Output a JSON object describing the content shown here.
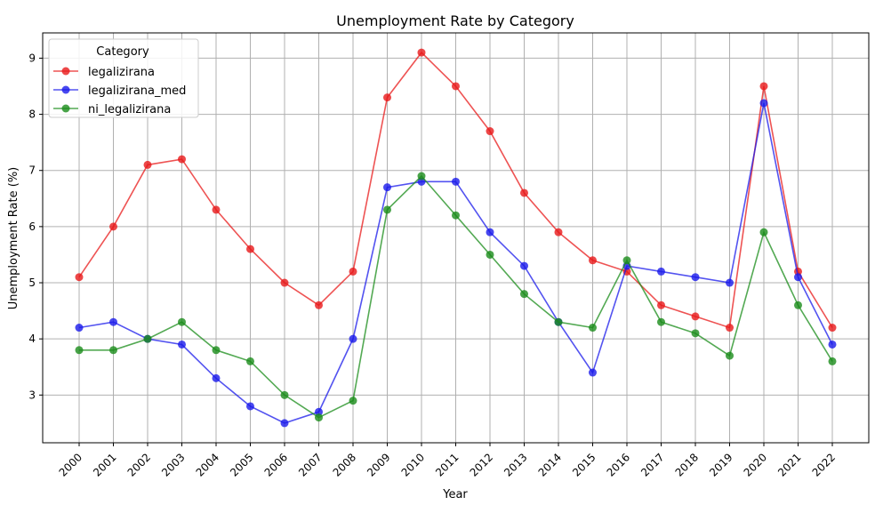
{
  "chart_data": {
    "type": "line",
    "title": "Unemployment Rate by Category",
    "xlabel": "Year",
    "ylabel": "Unemployment Rate (%)",
    "ylim": [
      2.15,
      9.45
    ],
    "yticks": [
      3,
      4,
      5,
      6,
      7,
      8,
      9
    ],
    "grid": true,
    "legend": {
      "title": "Category",
      "placement": "top-left"
    },
    "categories": [
      "2000",
      "2001",
      "2002",
      "2003",
      "2004",
      "2005",
      "2006",
      "2007",
      "2008",
      "2009",
      "2010",
      "2011",
      "2012",
      "2013",
      "2014",
      "2015",
      "2016",
      "2017",
      "2018",
      "2019",
      "2020",
      "2021",
      "2022"
    ],
    "series": [
      {
        "name": "legalizirana",
        "color": "#e8191a",
        "values": [
          5.1,
          6.0,
          7.1,
          7.2,
          6.3,
          5.6,
          5.0,
          4.6,
          5.2,
          8.3,
          9.1,
          8.5,
          7.7,
          6.6,
          5.9,
          5.4,
          5.2,
          4.6,
          4.4,
          4.2,
          8.5,
          5.2,
          4.2
        ]
      },
      {
        "name": "legalizirana_med",
        "color": "#1a1aeb",
        "values": [
          4.2,
          4.3,
          4.0,
          3.9,
          3.3,
          2.8,
          2.5,
          2.7,
          4.0,
          6.7,
          6.8,
          6.8,
          5.9,
          5.3,
          4.3,
          3.4,
          5.3,
          5.2,
          5.1,
          5.0,
          8.2,
          5.1,
          3.9
        ]
      },
      {
        "name": "ni_legalizirana",
        "color": "#1a8c1a",
        "values": [
          3.8,
          3.8,
          4.0,
          4.3,
          3.8,
          3.6,
          3.0,
          2.6,
          2.9,
          6.3,
          6.9,
          6.2,
          5.5,
          4.8,
          4.3,
          4.2,
          5.4,
          4.3,
          4.1,
          3.7,
          5.9,
          4.6,
          3.6
        ]
      }
    ]
  }
}
